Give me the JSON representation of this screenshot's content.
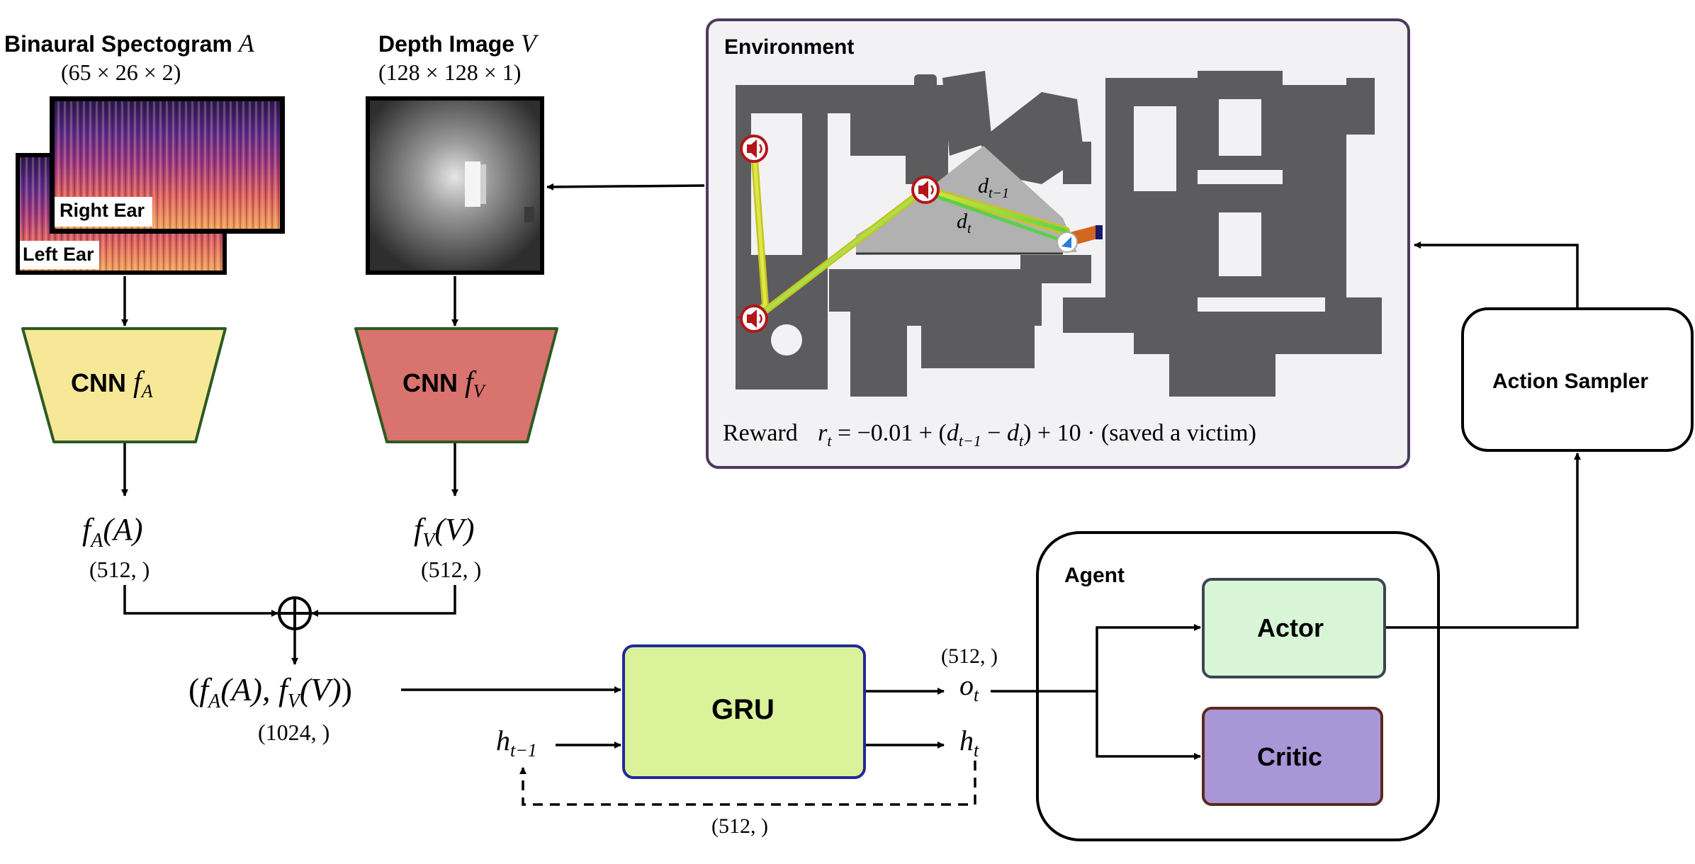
{
  "audio": {
    "title": "Binaural Spectogram",
    "title_var": "A",
    "shape": "(65 × 26 × 2)",
    "right_ear_label": "Right Ear",
    "left_ear_label": "Left Ear",
    "cnn_label": "CNN",
    "cnn_func": "f",
    "cnn_sub": "A",
    "feature_func": "f",
    "feature_sub": "A",
    "feature_arg": "(A)",
    "feature_shape": "(512, )"
  },
  "depth": {
    "title": "Depth Image",
    "title_var": "V",
    "shape": "(128 × 128 × 1)",
    "cnn_label": "CNN",
    "cnn_func": "f",
    "cnn_sub": "V",
    "feature_func": "f",
    "feature_sub": "V",
    "feature_arg": "(V)",
    "feature_shape": "(512, )"
  },
  "concat": {
    "open": "(",
    "f1": "f",
    "s1": "A",
    "a1": "(A), ",
    "f2": "f",
    "s2": "V",
    "a2": "(V)",
    "close": ")",
    "shape": "(1024, )"
  },
  "gru": {
    "label": "GRU",
    "h_prev": "h",
    "h_prev_sub": "t−1",
    "o": "o",
    "o_sub": "t",
    "o_shape": "(512, )",
    "h": "h",
    "h_sub": "t",
    "loop_shape": "(512, )"
  },
  "agent": {
    "title": "Agent",
    "actor_label": "Actor",
    "critic_label": "Critic"
  },
  "sampler": {
    "label": "Action Sampler"
  },
  "environment": {
    "title": "Environment",
    "d_prev": "d",
    "d_prev_sub": "t−1",
    "d_cur": "d",
    "d_cur_sub": "t",
    "reward_word": "Reward",
    "reward_r": "r",
    "reward_r_sub": "t",
    "reward_eq1": " = −0.01 + (",
    "reward_d1": "d",
    "reward_d1_sub": "t−1",
    "reward_minus": " − ",
    "reward_d2": "d",
    "reward_d2_sub": "t",
    "reward_eq2": ") + 10 · (saved a victim)"
  },
  "colors": {
    "cnn_audio": "#f7e898",
    "cnn_depth": "#d9736e",
    "gru": "#daf29a",
    "actor": "#d8f5d8",
    "critic": "#a896d6",
    "environment_bg": "#f2f2f4",
    "environment_border": "#4c3a60"
  }
}
